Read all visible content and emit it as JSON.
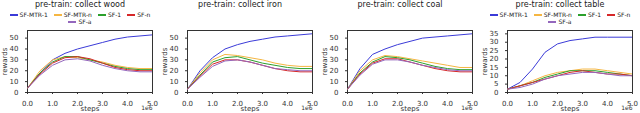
{
  "chart_data": [
    {
      "type": "line",
      "title": "pre-train: collect wood",
      "xlabel": "steps",
      "ylabel": "rewards",
      "annotation": "1e6",
      "x": [
        0,
        0.5,
        1,
        1.5,
        2,
        2.5,
        3,
        3.5,
        4,
        4.5,
        5
      ],
      "xlim": [
        0,
        5
      ],
      "xticks": [
        0,
        1,
        2,
        3,
        4,
        5
      ],
      "ylim": [
        0,
        57
      ],
      "yticks": [
        0,
        10,
        20,
        30,
        40,
        50
      ],
      "grid": false,
      "legend": "top",
      "series": [
        {
          "name": "SF-MTR-1",
          "color": "#3b3bd8",
          "values": [
            4,
            18,
            30,
            36,
            40,
            43,
            46,
            49,
            51,
            52,
            53
          ]
        },
        {
          "name": "SF-MTR-n",
          "color": "#f5b642",
          "values": [
            4,
            20,
            30,
            33,
            32,
            30,
            28,
            25,
            23,
            22,
            22
          ]
        },
        {
          "name": "SF-1",
          "color": "#2ca02c",
          "values": [
            4,
            18,
            28,
            33,
            33,
            30,
            27,
            24,
            22,
            21,
            21
          ]
        },
        {
          "name": "SF-n",
          "color": "#d62728",
          "values": [
            4,
            17,
            27,
            32,
            33,
            31,
            27,
            23,
            21,
            20,
            20
          ]
        },
        {
          "name": "SF-a",
          "color": "#9467bd",
          "values": [
            4,
            16,
            25,
            30,
            31,
            29,
            25,
            22,
            20,
            19,
            19
          ]
        }
      ]
    },
    {
      "type": "line",
      "title": "pre-train: collect iron",
      "xlabel": "steps",
      "ylabel": "rewards",
      "annotation": "1e6",
      "x": [
        0,
        0.5,
        1,
        1.5,
        2,
        2.5,
        3,
        3.5,
        4,
        4.5,
        5
      ],
      "xlim": [
        0,
        5
      ],
      "xticks": [
        0,
        1,
        2,
        3,
        4,
        5
      ],
      "ylim": [
        0,
        57
      ],
      "yticks": [
        0,
        10,
        20,
        30,
        40,
        50
      ],
      "grid": false,
      "series": [
        {
          "name": "SF-MTR-1",
          "color": "#3b3bd8",
          "values": [
            3,
            20,
            32,
            40,
            44,
            47,
            49,
            51,
            52,
            53,
            54
          ]
        },
        {
          "name": "SF-MTR-n",
          "color": "#f5b642",
          "values": [
            3,
            18,
            30,
            35,
            34,
            32,
            30,
            27,
            25,
            24,
            24
          ]
        },
        {
          "name": "SF-1",
          "color": "#2ca02c",
          "values": [
            3,
            16,
            28,
            32,
            33,
            30,
            27,
            25,
            23,
            22,
            22
          ]
        },
        {
          "name": "SF-n",
          "color": "#d62728",
          "values": [
            3,
            15,
            26,
            30,
            30,
            28,
            25,
            22,
            20,
            19,
            19
          ]
        },
        {
          "name": "SF-a",
          "color": "#9467bd",
          "values": [
            3,
            14,
            24,
            29,
            30,
            28,
            25,
            22,
            21,
            20,
            20
          ]
        }
      ]
    },
    {
      "type": "line",
      "title": "pre-train: collect coal",
      "xlabel": "steps",
      "ylabel": "rewards",
      "annotation": "1e6",
      "x": [
        0,
        0.5,
        1,
        1.5,
        2,
        2.5,
        3,
        3.5,
        4,
        4.5,
        5
      ],
      "xlim": [
        0,
        5
      ],
      "xticks": [
        0,
        1,
        2,
        3,
        4,
        5
      ],
      "ylim": [
        0,
        57
      ],
      "yticks": [
        0,
        10,
        20,
        30,
        40,
        50
      ],
      "grid": false,
      "series": [
        {
          "name": "SF-MTR-1",
          "color": "#3b3bd8",
          "values": [
            3,
            22,
            35,
            40,
            44,
            47,
            50,
            51,
            52,
            53,
            54
          ]
        },
        {
          "name": "SF-MTR-n",
          "color": "#f5b642",
          "values": [
            3,
            20,
            30,
            34,
            33,
            31,
            29,
            27,
            25,
            23,
            23
          ]
        },
        {
          "name": "SF-1",
          "color": "#2ca02c",
          "values": [
            3,
            18,
            28,
            33,
            32,
            30,
            27,
            24,
            22,
            21,
            21
          ]
        },
        {
          "name": "SF-n",
          "color": "#d62728",
          "values": [
            3,
            17,
            27,
            31,
            31,
            28,
            25,
            22,
            20,
            19,
            19
          ]
        },
        {
          "name": "SF-a",
          "color": "#9467bd",
          "values": [
            3,
            16,
            26,
            30,
            30,
            28,
            25,
            23,
            21,
            20,
            20
          ]
        }
      ]
    },
    {
      "type": "line",
      "title": "pre-train: collect table",
      "xlabel": "steps",
      "ylabel": "rewards",
      "annotation": "1e6",
      "x": [
        0,
        0.5,
        1,
        1.5,
        2,
        2.5,
        3,
        3.5,
        4,
        4.5,
        5
      ],
      "xlim": [
        0,
        5
      ],
      "xticks": [
        0,
        1,
        2,
        3,
        4,
        5
      ],
      "ylim": [
        0,
        37
      ],
      "yticks": [
        0,
        5,
        10,
        15,
        20,
        25,
        30,
        35
      ],
      "grid": false,
      "legend": "top",
      "series": [
        {
          "name": "SF-MTR-1",
          "color": "#3b3bd8",
          "values": [
            2,
            6,
            14,
            24,
            29,
            31,
            32,
            33,
            33,
            33,
            33
          ]
        },
        {
          "name": "SF-MTR-n",
          "color": "#f5b642",
          "values": [
            2,
            4,
            7,
            10,
            12,
            13,
            14,
            14,
            13,
            12,
            11
          ]
        },
        {
          "name": "SF-1",
          "color": "#2ca02c",
          "values": [
            2,
            4,
            6,
            9,
            11,
            13,
            13,
            13,
            12,
            11,
            10
          ]
        },
        {
          "name": "SF-n",
          "color": "#d62728",
          "values": [
            2,
            4,
            6,
            8,
            10,
            12,
            13,
            12,
            11,
            11,
            10
          ]
        },
        {
          "name": "SF-a",
          "color": "#9467bd",
          "values": [
            2,
            3,
            5,
            8,
            10,
            11,
            12,
            12,
            11,
            10,
            10
          ]
        }
      ]
    }
  ]
}
